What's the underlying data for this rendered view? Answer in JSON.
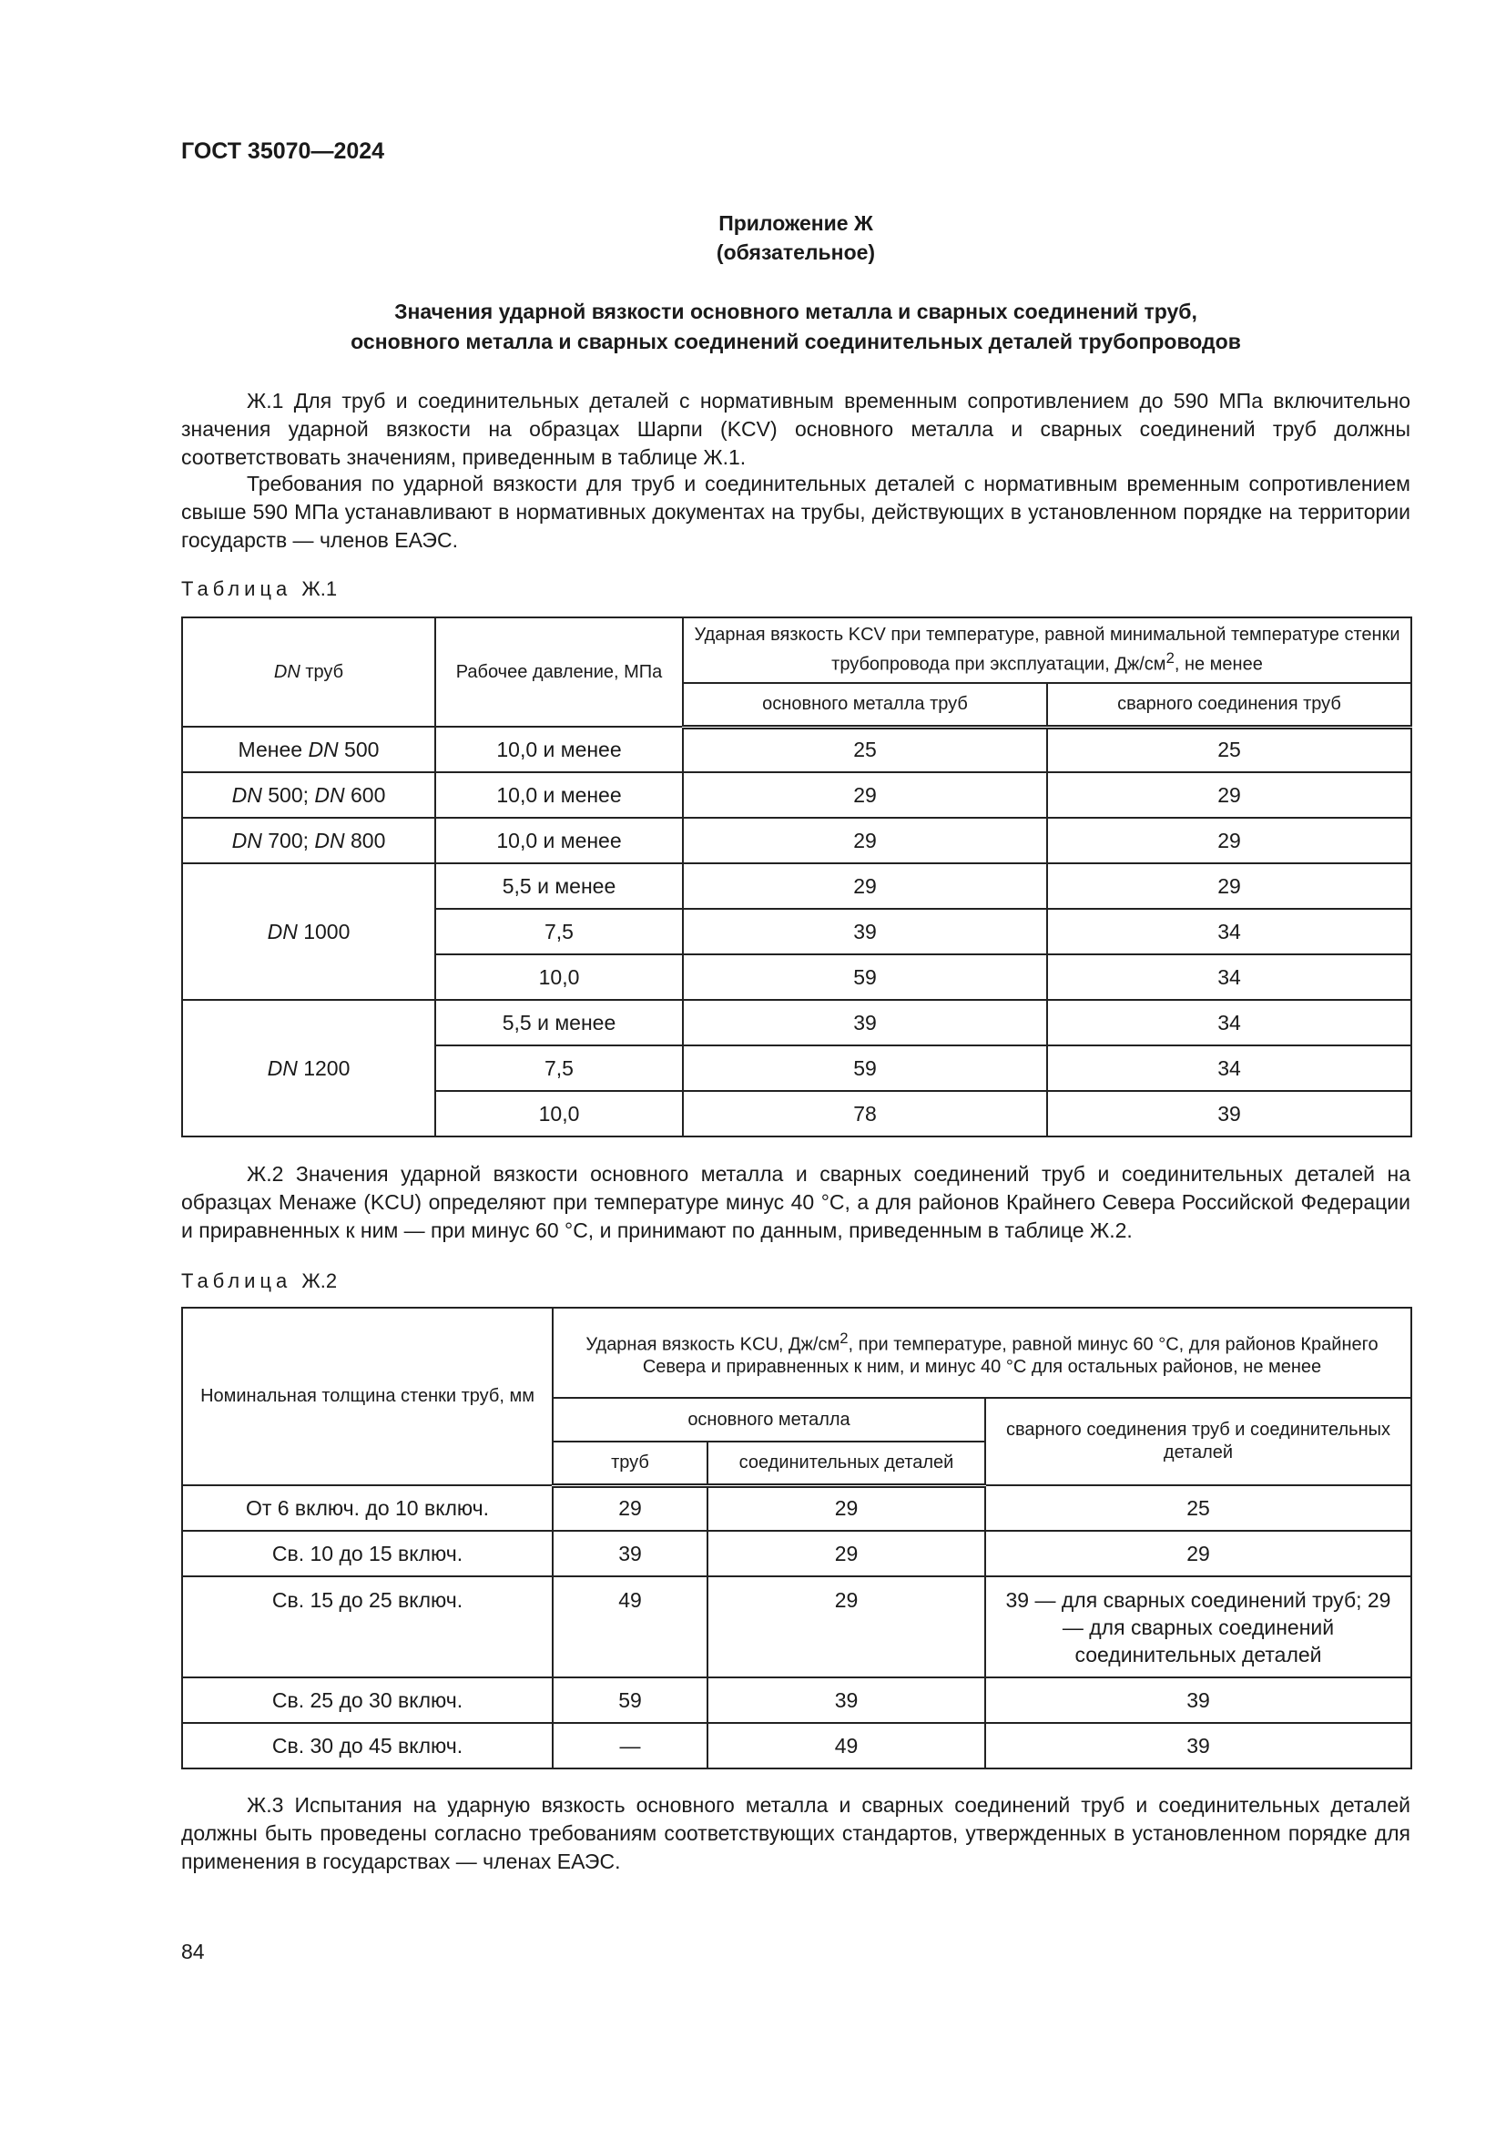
{
  "header": {
    "doc_id": "ГОСТ 35070—2024"
  },
  "appendix": {
    "title": "Приложение Ж",
    "status": "(обязательное)"
  },
  "title": {
    "line1": "Значения ударной вязкости основного металла и сварных соединений труб,",
    "line2": "основного металла и сварных соединений соединительных деталей трубопроводов"
  },
  "paragraphs": {
    "p1": "Ж.1 Для труб и соединительных деталей с нормативным временным сопротивлением до 590 МПа включительно значения ударной вязкости на образцах Шарпи (KCV) основного металла и сварных соединений труб должны соответствовать значениям, приведенным в таблице Ж.1.",
    "p2": "Требования по ударной вязкости для труб и соединительных деталей с нормативным временным сопротивлением свыше 590 МПа устанавливают в нормативных документах на трубы, действующих в установленном порядке на территории государств — членов ЕАЭС.",
    "p3": "Ж.2 Значения ударной вязкости основного металла и сварных соединений труб и соединительных деталей на образцах Менаже (KCU) определяют при температуре минус 40 °С, а для районов Крайнего Севера Российской Федерации и приравненных к ним — при минус 60 °С, и принимают по данным, приведенным в таблице Ж.2.",
    "p4": "Ж.3 Испытания на ударную вязкость основного металла и сварных соединений труб и соединительных деталей должны быть проведены согласно требованиям соответствующих стандартов, утвержденных в установленном порядке для применения в государствах — членах ЕАЭС."
  },
  "table1": {
    "caption": "Таблица",
    "caption_no": "Ж.1",
    "h_dn": "DN",
    "h_dn_rest": " труб",
    "h_pressure": "Рабочее давление, МПа",
    "h_kcv": "Ударная вязкость KCV при температуре, равной минимальной температуре стенки трубопровода при эксплуатации, Дж/см",
    "h_kcv_sup": "2",
    "h_kcv_tail": ", не менее",
    "h_base": "основного металла труб",
    "h_weld": "сварного соединения труб",
    "rows": [
      {
        "dn": "Менее DN 500",
        "p": "10,0 и менее",
        "base": "25",
        "weld": "25"
      },
      {
        "dn": "DN 500; DN 600",
        "p": "10,0 и менее",
        "base": "29",
        "weld": "29"
      },
      {
        "dn": "DN 700; DN 800",
        "p": "10,0 и менее",
        "base": "29",
        "weld": "29"
      },
      {
        "dn": "DN 1000",
        "p": "5,5 и менее",
        "base": "29",
        "weld": "29"
      },
      {
        "p": "7,5",
        "base": "39",
        "weld": "34"
      },
      {
        "p": "10,0",
        "base": "59",
        "weld": "34"
      },
      {
        "dn": "DN 1200",
        "p": "5,5 и менее",
        "base": "39",
        "weld": "34"
      },
      {
        "p": "7,5",
        "base": "59",
        "weld": "34"
      },
      {
        "p": "10,0",
        "base": "78",
        "weld": "39"
      }
    ]
  },
  "table2": {
    "caption": "Таблица",
    "caption_no": "Ж.2",
    "h_thick": "Номинальная толщина стенки труб, мм",
    "h_kcu_a": "Ударная вязкость KCU, Дж/см",
    "h_kcu_sup": "2",
    "h_kcu_b": ", при температуре, равной минус 60 °С, для районов Крайнего Севера и приравненных к ним, и минус 40 °С для остальных районов, не менее",
    "h_base": "основного металла",
    "h_pipes": "труб",
    "h_fittings": "соединительных деталей",
    "h_weld": "сварного соединения труб и соединительных деталей",
    "rows": [
      {
        "t": "От 6 включ. до 10 включ.",
        "pipes": "29",
        "fittings": "29",
        "weld": "25"
      },
      {
        "t": "Св. 10 до 15 включ.",
        "pipes": "39",
        "fittings": "29",
        "weld": "29"
      },
      {
        "t": "Св. 15 до 25 включ.",
        "pipes": "49",
        "fittings": "29",
        "weld": "39 — для сварных соединений труб; 29 — для сварных соединений соединительных деталей"
      },
      {
        "t": "Св. 25 до 30 включ.",
        "pipes": "59",
        "fittings": "39",
        "weld": "39"
      },
      {
        "t": "Св. 30 до 45 включ.",
        "pipes": "—",
        "fittings": "49",
        "weld": "39"
      }
    ]
  },
  "page_number": "84"
}
